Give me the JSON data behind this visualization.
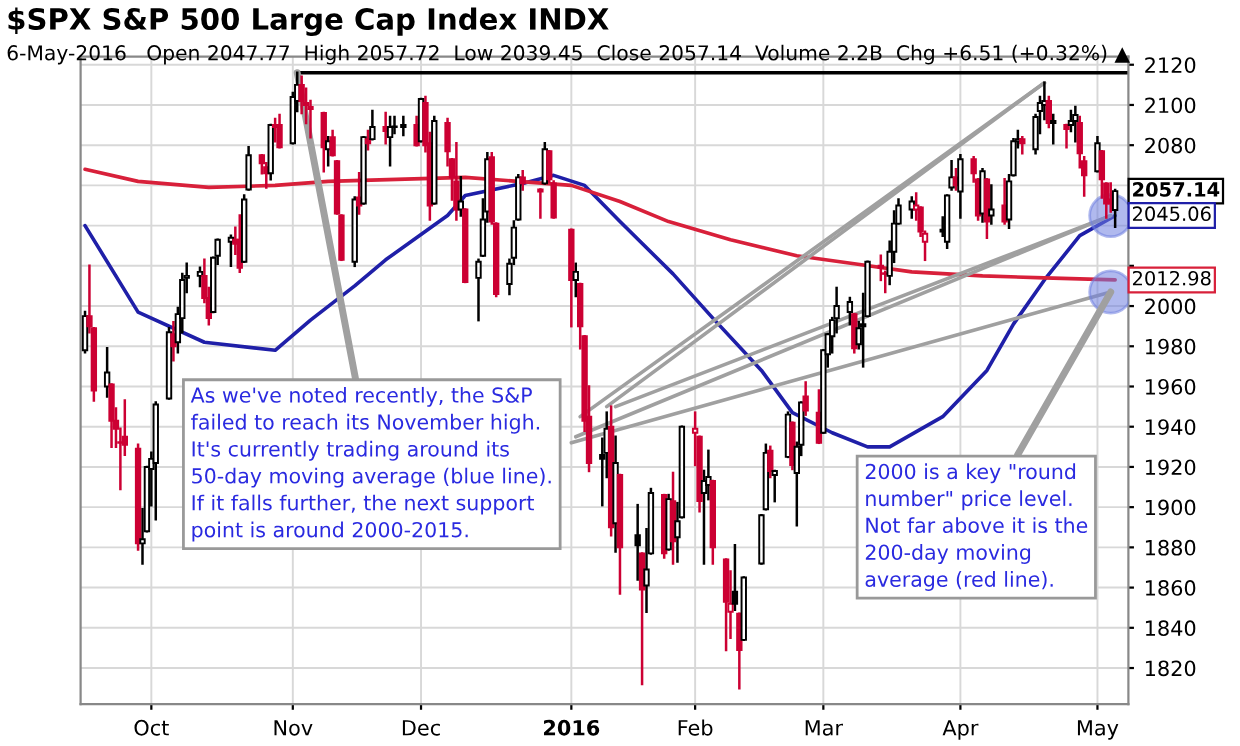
{
  "chart_data": {
    "type": "candlestick",
    "title": "$SPX S&P 500 Large Cap Index INDX",
    "subtitle": "6-May-2016   Open 2047.77  High 2057.72  Low 2039.45  Close 2057.14  Volume 2.2B  Chg +6.51 (+0.32%) ▲",
    "x": [
      "2015-09-16",
      "2015-09-17",
      "2015-09-18",
      "2015-09-21",
      "2015-09-22",
      "2015-09-23",
      "2015-09-24",
      "2015-09-25",
      "2015-09-28",
      "2015-09-29",
      "2015-09-30",
      "2015-10-01",
      "2015-10-02",
      "2015-10-05",
      "2015-10-06",
      "2015-10-07",
      "2015-10-08",
      "2015-10-09",
      "2015-10-12",
      "2015-10-13",
      "2015-10-14",
      "2015-10-15",
      "2015-10-16",
      "2015-10-19",
      "2015-10-20",
      "2015-10-21",
      "2015-10-22",
      "2015-10-23",
      "2015-10-26",
      "2015-10-27",
      "2015-10-28",
      "2015-10-29",
      "2015-10-30",
      "2015-11-02",
      "2015-11-03",
      "2015-11-04",
      "2015-11-05",
      "2015-11-06",
      "2015-11-09",
      "2015-11-10",
      "2015-11-11",
      "2015-11-12",
      "2015-11-13",
      "2015-11-16",
      "2015-11-17",
      "2015-11-18",
      "2015-11-19",
      "2015-11-20",
      "2015-11-23",
      "2015-11-24",
      "2015-11-25",
      "2015-11-27",
      "2015-11-30",
      "2015-12-01",
      "2015-12-02",
      "2015-12-03",
      "2015-12-04",
      "2015-12-07",
      "2015-12-08",
      "2015-12-09",
      "2015-12-10",
      "2015-12-11",
      "2015-12-14",
      "2015-12-15",
      "2015-12-16",
      "2015-12-17",
      "2015-12-18",
      "2015-12-21",
      "2015-12-22",
      "2015-12-23",
      "2015-12-24",
      "2015-12-28",
      "2015-12-29",
      "2015-12-30",
      "2015-12-31",
      "2016-01-04",
      "2016-01-05",
      "2016-01-06",
      "2016-01-07",
      "2016-01-08",
      "2016-01-11",
      "2016-01-12",
      "2016-01-13",
      "2016-01-14",
      "2016-01-15",
      "2016-01-19",
      "2016-01-20",
      "2016-01-21",
      "2016-01-22",
      "2016-01-25",
      "2016-01-26",
      "2016-01-27",
      "2016-01-28",
      "2016-01-29",
      "2016-02-01",
      "2016-02-02",
      "2016-02-03",
      "2016-02-04",
      "2016-02-05",
      "2016-02-08",
      "2016-02-09",
      "2016-02-10",
      "2016-02-11",
      "2016-02-12",
      "2016-02-16",
      "2016-02-17",
      "2016-02-18",
      "2016-02-19",
      "2016-02-22",
      "2016-02-23",
      "2016-02-24",
      "2016-02-25",
      "2016-02-26",
      "2016-02-29",
      "2016-03-01",
      "2016-03-02",
      "2016-03-03",
      "2016-03-04",
      "2016-03-07",
      "2016-03-08",
      "2016-03-09",
      "2016-03-10",
      "2016-03-11",
      "2016-03-14",
      "2016-03-15",
      "2016-03-16",
      "2016-03-17",
      "2016-03-18",
      "2016-03-21",
      "2016-03-22",
      "2016-03-23",
      "2016-03-24",
      "2016-03-28",
      "2016-03-29",
      "2016-03-30",
      "2016-03-31",
      "2016-04-01",
      "2016-04-04",
      "2016-04-05",
      "2016-04-06",
      "2016-04-07",
      "2016-04-08",
      "2016-04-11",
      "2016-04-12",
      "2016-04-13",
      "2016-04-14",
      "2016-04-15",
      "2016-04-18",
      "2016-04-19",
      "2016-04-20",
      "2016-04-21",
      "2016-04-22",
      "2016-04-25",
      "2016-04-26",
      "2016-04-27",
      "2016-04-28",
      "2016-04-29",
      "2016-05-02",
      "2016-05-03",
      "2016-05-04",
      "2016-05-05",
      "2016-05-06"
    ],
    "ohlc": [
      [
        1978,
        1997,
        1977,
        1995
      ],
      [
        1995,
        2020,
        1987,
        1990
      ],
      [
        1989,
        1989,
        1953,
        1958
      ],
      [
        1960,
        1979,
        1955,
        1967
      ],
      [
        1961,
        1961,
        1930,
        1943
      ],
      [
        1943,
        1949,
        1930,
        1939
      ],
      [
        1932,
        1939,
        1909,
        1932
      ],
      [
        1935,
        1953,
        1926,
        1931
      ],
      [
        1929,
        1931,
        1879,
        1882
      ],
      [
        1882,
        1899,
        1872,
        1884
      ],
      [
        1888,
        1920,
        1888,
        1920
      ],
      [
        1919,
        1927,
        1901,
        1924
      ],
      [
        1922,
        1952,
        1894,
        1951
      ],
      [
        1954,
        1989,
        1954,
        1987
      ],
      [
        1986,
        1992,
        1973,
        1980
      ],
      [
        1982,
        1999,
        1977,
        1996
      ],
      [
        1994,
        2016,
        1987,
        2013
      ],
      [
        2014,
        2021,
        2007,
        2015
      ],
      [
        2015,
        2019,
        2010,
        2017
      ],
      [
        2015,
        2023,
        2002,
        2004
      ],
      [
        2004,
        2009,
        1991,
        1994
      ],
      [
        1997,
        2024,
        1997,
        2024
      ],
      [
        2025,
        2033,
        2021,
        2033
      ],
      [
        2032,
        2035,
        2020,
        2034
      ],
      [
        2033,
        2039,
        2026,
        2031
      ],
      [
        2033,
        2045,
        2017,
        2019
      ],
      [
        2022,
        2055,
        2022,
        2053
      ],
      [
        2058,
        2079,
        2058,
        2075
      ],
      [
        2075,
        2075,
        2066,
        2071
      ],
      [
        2069,
        2071,
        2059,
        2066
      ],
      [
        2066,
        2090,
        2063,
        2090
      ],
      [
        2090,
        2093,
        2082,
        2089
      ],
      [
        2090,
        2095,
        2079,
        2079
      ],
      [
        2081,
        2106,
        2081,
        2104
      ],
      [
        2102,
        2116,
        2097,
        2110
      ],
      [
        2110,
        2114,
        2096,
        2102
      ],
      [
        2101,
        2108,
        2091,
        2100
      ],
      [
        2098,
        2102,
        2084,
        2099
      ],
      [
        2096,
        2096,
        2067,
        2079
      ],
      [
        2078,
        2084,
        2070,
        2082
      ],
      [
        2084,
        2087,
        2075,
        2075
      ],
      [
        2072,
        2072,
        2046,
        2046
      ],
      [
        2045,
        2045,
        2023,
        2023
      ],
      [
        2022,
        2054,
        2020,
        2053
      ],
      [
        2054,
        2066,
        2046,
        2050
      ],
      [
        2051,
        2084,
        2051,
        2084
      ],
      [
        2083,
        2087,
        2078,
        2081
      ],
      [
        2083,
        2097,
        2083,
        2089
      ],
      [
        2089,
        2096,
        2081,
        2087
      ],
      [
        2084,
        2094,
        2070,
        2089
      ],
      [
        2089,
        2094,
        2086,
        2089
      ],
      [
        2089,
        2094,
        2085,
        2090
      ],
      [
        2090,
        2094,
        2080,
        2080
      ],
      [
        2082,
        2103,
        2082,
        2103
      ],
      [
        2101,
        2104,
        2077,
        2080
      ],
      [
        2081,
        2086,
        2043,
        2050
      ],
      [
        2051,
        2094,
        2051,
        2092
      ],
      [
        2091,
        2093,
        2070,
        2077
      ],
      [
        2073,
        2073,
        2053,
        2064
      ],
      [
        2062,
        2081,
        2043,
        2048
      ],
      [
        2048,
        2064,
        2045,
        2052
      ],
      [
        2048,
        2048,
        2012,
        2012
      ],
      [
        2014,
        2023,
        1993,
        2022
      ],
      [
        2025,
        2053,
        2025,
        2043
      ],
      [
        2047,
        2076,
        2042,
        2073
      ],
      [
        2074,
        2076,
        2041,
        2042
      ],
      [
        2041,
        2041,
        2005,
        2006
      ],
      [
        2011,
        2023,
        2006,
        2021
      ],
      [
        2024,
        2042,
        2021,
        2039
      ],
      [
        2043,
        2065,
        2043,
        2064
      ],
      [
        2064,
        2067,
        2058,
        2061
      ],
      [
        2058,
        2058,
        2044,
        2057
      ],
      [
        2061,
        2081,
        2061,
        2078
      ],
      [
        2077,
        2077,
        2062,
        2063
      ],
      [
        2061,
        2062,
        2044,
        2044
      ],
      [
        2038,
        2038,
        1990,
        2013
      ],
      [
        2013,
        2021,
        2005,
        2017
      ],
      [
        2011,
        2011,
        1979,
        1990
      ],
      [
        1985,
        1985,
        1938,
        1943
      ],
      [
        1945,
        1960,
        1918,
        1922
      ],
      [
        1926,
        1934,
        1901,
        1924
      ],
      [
        1927,
        1947,
        1915,
        1939
      ],
      [
        1940,
        1950,
        1886,
        1890
      ],
      [
        1892,
        1935,
        1878,
        1922
      ],
      [
        1916,
        1916,
        1857,
        1880
      ],
      [
        1886,
        1901,
        1864,
        1881
      ],
      [
        1877,
        1877,
        1812,
        1859
      ],
      [
        1861,
        1889,
        1848,
        1869
      ],
      [
        1877,
        1909,
        1877,
        1907
      ],
      [
        1906,
        1906,
        1875,
        1877
      ],
      [
        1879,
        1906,
        1879,
        1904
      ],
      [
        1903,
        1917,
        1872,
        1883
      ],
      [
        1885,
        1902,
        1873,
        1893
      ],
      [
        1895,
        1940,
        1895,
        1940
      ],
      [
        1937,
        1947,
        1921,
        1939
      ],
      [
        1935,
        1935,
        1898,
        1903
      ],
      [
        1907,
        1918,
        1872,
        1913
      ],
      [
        1911,
        1928,
        1904,
        1915
      ],
      [
        1913,
        1913,
        1872,
        1880
      ],
      [
        1874,
        1874,
        1829,
        1853
      ],
      [
        1848,
        1868,
        1835,
        1852
      ],
      [
        1858,
        1881,
        1849,
        1852
      ],
      [
        1847,
        1847,
        1810,
        1829
      ],
      [
        1834,
        1865,
        1834,
        1865
      ],
      [
        1872,
        1896,
        1872,
        1896
      ],
      [
        1899,
        1931,
        1899,
        1927
      ],
      [
        1928,
        1930,
        1915,
        1918
      ],
      [
        1916,
        1918,
        1903,
        1918
      ],
      [
        1925,
        1947,
        1925,
        1946
      ],
      [
        1942,
        1942,
        1919,
        1921
      ],
      [
        1917,
        1932,
        1891,
        1930
      ],
      [
        1931,
        1952,
        1926,
        1952
      ],
      [
        1955,
        1962,
        1946,
        1948
      ],
      [
        1947,
        1958,
        1932,
        1932
      ],
      [
        1937,
        1978,
        1937,
        1978
      ],
      [
        1976,
        1986,
        1970,
        1986
      ],
      [
        1985,
        1994,
        1977,
        1993
      ],
      [
        1994,
        2009,
        1987,
        2000
      ],
      [
        1997,
        2004,
        1991,
        2002
      ],
      [
        1996,
        1996,
        1977,
        1979
      ],
      [
        1981,
        1992,
        1979,
        1989
      ],
      [
        1991,
        2006,
        1970,
        1990
      ],
      [
        1995,
        2022,
        1995,
        2022
      ],
      [
        2019,
        2025,
        2013,
        2020
      ],
      [
        2016,
        2017,
        2007,
        2016
      ],
      [
        2015,
        2032,
        2011,
        2027
      ],
      [
        2027,
        2047,
        2022,
        2041
      ],
      [
        2041,
        2053,
        2041,
        2050
      ],
      [
        2048,
        2054,
        2044,
        2052
      ],
      [
        2048,
        2056,
        2043,
        2050
      ],
      [
        2049,
        2049,
        2035,
        2037
      ],
      [
        2032,
        2037,
        2023,
        2036
      ],
      [
        2038,
        2044,
        2035,
        2037
      ],
      [
        2032,
        2055,
        2029,
        2055
      ],
      [
        2059,
        2072,
        2058,
        2064
      ],
      [
        2064,
        2068,
        2058,
        2060
      ],
      [
        2057,
        2075,
        2044,
        2073
      ],
      [
        2073,
        2074,
        2062,
        2066
      ],
      [
        2063,
        2063,
        2043,
        2045
      ],
      [
        2046,
        2068,
        2042,
        2067
      ],
      [
        2063,
        2063,
        2034,
        2042
      ],
      [
        2045,
        2060,
        2041,
        2048
      ],
      [
        2050,
        2063,
        2041,
        2042
      ],
      [
        2043,
        2065,
        2039,
        2062
      ],
      [
        2065,
        2083,
        2065,
        2082
      ],
      [
        2082,
        2087,
        2079,
        2083
      ],
      [
        2083,
        2084,
        2076,
        2081
      ],
      [
        2078,
        2095,
        2076,
        2094
      ],
      [
        2097,
        2104,
        2086,
        2101
      ],
      [
        2100,
        2111,
        2093,
        2102
      ],
      [
        2102,
        2104,
        2089,
        2091
      ],
      [
        2091,
        2095,
        2081,
        2092
      ],
      [
        2090,
        2090,
        2079,
        2088
      ],
      [
        2090,
        2097,
        2087,
        2092
      ],
      [
        2092,
        2099,
        2082,
        2095
      ],
      [
        2091,
        2094,
        2069,
        2076
      ],
      [
        2072,
        2074,
        2055,
        2065
      ],
      [
        2067,
        2084,
        2067,
        2081
      ],
      [
        2077,
        2077,
        2054,
        2063
      ],
      [
        2061,
        2061,
        2044,
        2051
      ],
      [
        2053,
        2061,
        2047,
        2051
      ],
      [
        2047.77,
        2057.72,
        2039.45,
        2057.14
      ]
    ],
    "colors": [
      "#000000",
      "#cc0033",
      "#cc0033",
      "#000000",
      "#cc0033",
      "#cc0033",
      "#cc0033",
      "#cc0033",
      "#cc0033",
      "#000000",
      "#000000",
      "#000000",
      "#000000",
      "#000000",
      "#cc0033",
      "#000000",
      "#000000",
      "#000000",
      "#000000",
      "#cc0033",
      "#cc0033",
      "#000000",
      "#000000",
      "#000000",
      "#cc0033",
      "#cc0033",
      "#000000",
      "#000000",
      "#cc0033",
      "#cc0033",
      "#000000",
      "#cc0033",
      "#cc0033",
      "#000000",
      "#000000",
      "#cc0033",
      "#cc0033",
      "#cc0033",
      "#cc0033",
      "#000000",
      "#cc0033",
      "#cc0033",
      "#cc0033",
      "#000000",
      "#cc0033",
      "#000000",
      "#cc0033",
      "#000000",
      "#cc0033",
      "#000000",
      "#000000",
      "#000000",
      "#cc0033",
      "#000000",
      "#cc0033",
      "#cc0033",
      "#000000",
      "#cc0033",
      "#cc0033",
      "#cc0033",
      "#000000",
      "#cc0033",
      "#000000",
      "#000000",
      "#000000",
      "#cc0033",
      "#cc0033",
      "#000000",
      "#000000",
      "#000000",
      "#cc0033",
      "#cc0033",
      "#000000",
      "#cc0033",
      "#cc0033",
      "#cc0033",
      "#000000",
      "#cc0033",
      "#cc0033",
      "#cc0033",
      "#000000",
      "#000000",
      "#cc0033",
      "#000000",
      "#cc0033",
      "#000000",
      "#cc0033",
      "#000000",
      "#000000",
      "#cc0033",
      "#000000",
      "#cc0033",
      "#000000",
      "#000000",
      "#cc0033",
      "#cc0033",
      "#000000",
      "#000000",
      "#cc0033",
      "#cc0033",
      "#cc0033",
      "#000000",
      "#cc0033",
      "#000000",
      "#000000",
      "#000000",
      "#cc0033",
      "#000000",
      "#000000",
      "#cc0033",
      "#000000",
      "#000000",
      "#cc0033",
      "#cc0033",
      "#000000",
      "#000000",
      "#000000",
      "#000000",
      "#000000",
      "#cc0033",
      "#000000",
      "#000000",
      "#000000",
      "#cc0033",
      "#cc0033",
      "#000000",
      "#000000",
      "#000000",
      "#000000",
      "#cc0033",
      "#cc0033",
      "#cc0033",
      "#000000",
      "#000000",
      "#000000",
      "#cc0033",
      "#000000",
      "#cc0033",
      "#cc0033",
      "#000000",
      "#cc0033",
      "#000000",
      "#cc0033",
      "#000000",
      "#000000",
      "#000000",
      "#cc0033",
      "#000000",
      "#000000",
      "#000000",
      "#cc0033",
      "#000000",
      "#cc0033",
      "#000000",
      "#000000",
      "#cc0033",
      "#cc0033",
      "#000000",
      "#cc0033",
      "#cc0033",
      "#cc0033",
      "#000000"
    ],
    "series": [
      {
        "type": "line",
        "color": "#1f1fa8",
        "x": [
          "2015-09-16",
          "2015-09-28",
          "2015-10-13",
          "2015-10-29",
          "2015-11-06",
          "2015-11-16",
          "2015-11-23",
          "2015-12-07",
          "2015-12-11",
          "2015-12-24",
          "2015-12-31",
          "2016-01-07",
          "2016-01-15",
          "2016-01-27",
          "2016-02-05",
          "2016-02-16",
          "2016-02-23",
          "2016-03-03",
          "2016-03-11",
          "2016-03-16",
          "2016-03-28",
          "2016-04-07",
          "2016-04-13",
          "2016-04-20",
          "2016-04-28",
          "2016-05-06"
        ],
        "values": [
          2040,
          1997,
          1982,
          1978,
          1993,
          2010,
          2023,
          2045,
          2055,
          2061,
          2065,
          2060,
          2042,
          2016,
          1994,
          1968,
          1947,
          1937,
          1930,
          1930,
          1945,
          1968,
          1991,
          2013,
          2035,
          2045
        ]
      },
      {
        "type": "line",
        "color": "#d8203a",
        "x": [
          "2015-09-16",
          "2015-09-28",
          "2015-10-14",
          "2015-10-29",
          "2015-11-10",
          "2015-12-11",
          "2016-01-04",
          "2016-01-15",
          "2016-01-26",
          "2016-02-09",
          "2016-02-24",
          "2016-03-08",
          "2016-03-21",
          "2016-04-06",
          "2016-04-20",
          "2016-05-06"
        ],
        "values": [
          2068,
          2062,
          2059,
          2060,
          2062,
          2064,
          2060,
          2052,
          2042,
          2033,
          2025,
          2021,
          2017,
          2015,
          2014,
          2013
        ]
      },
      {
        "type": "line",
        "color": "#000000",
        "x": [
          "2015-11-03",
          "2016-05-09"
        ],
        "values": [
          2116,
          2116
        ]
      },
      {
        "type": "line",
        "color": "#a0a0a0",
        "x": [
          "2016-01-06",
          "2016-04-20"
        ],
        "values": [
          1945,
          2111
        ]
      },
      {
        "type": "line",
        "color": "#a0a0a0",
        "x": [
          "2016-01-12",
          "2016-04-20"
        ],
        "values": [
          1950,
          2111
        ]
      },
      {
        "type": "line",
        "color": "#a0a0a0",
        "x": [
          "2016-01-14",
          "2016-05-05"
        ],
        "values": [
          1950,
          2045
        ]
      },
      {
        "type": "line",
        "color": "#a0a0a0",
        "x": [
          "2016-01-05",
          "2016-05-05"
        ],
        "values": [
          1935,
          2045
        ]
      },
      {
        "type": "line",
        "color": "#a0a0a0",
        "x": [
          "2016-01-04",
          "2016-05-05"
        ],
        "values": [
          1932,
          2007
        ]
      },
      {
        "type": "scatter",
        "color": "#7080e0",
        "x": [
          "2016-05-05",
          "2016-05-05"
        ],
        "values": [
          2045,
          2007
        ]
      }
    ],
    "annotations": [
      {
        "text": "As we've noted recently, the S&P\nfailed to reach its November high.\nIt's currently trading around its\n50-day moving average (blue line).\nIf it falls further, the next support\npoint is around 2000-2015.",
        "x": "2015-11-03",
        "y": 2116
      },
      {
        "text": "2000 is a key \"round\nnumber\" price level.\nNot far above it is the\n200-day moving\naverage (red line).",
        "x": "2016-05-05",
        "y": 2007
      },
      {
        "text": "2057.14",
        "x": "2016-05-06",
        "y": 2057.14
      },
      {
        "text": "2045.06",
        "x": "2016-05-06",
        "y": 2045.06
      },
      {
        "text": "2012.98",
        "x": "2016-05-06",
        "y": 2012.98
      }
    ],
    "xlim": [
      "2015-09-15",
      "2016-05-09"
    ],
    "xticks": [
      {
        "value": "2015-10-01",
        "label": "Oct"
      },
      {
        "value": "2015-11-02",
        "label": "Nov"
      },
      {
        "value": "2015-12-01",
        "label": "Dec"
      },
      {
        "value": "2016-01-04",
        "label": "2016"
      },
      {
        "value": "2016-02-01",
        "label": "Feb"
      },
      {
        "value": "2016-03-01",
        "label": "Mar"
      },
      {
        "value": "2016-04-01",
        "label": "Apr"
      },
      {
        "value": "2016-05-02",
        "label": "May"
      }
    ],
    "ylim": [
      1802,
      2124
    ],
    "yticks": [
      1820,
      1840,
      1860,
      1880,
      1900,
      1920,
      1940,
      1960,
      1980,
      2000,
      {
        "value": 2020,
        "label": null
      },
      {
        "value": 2040,
        "label": null
      },
      {
        "value": 2060,
        "label": null
      },
      2080,
      2100,
      2120
    ],
    "grid": true,
    "legend": false
  }
}
